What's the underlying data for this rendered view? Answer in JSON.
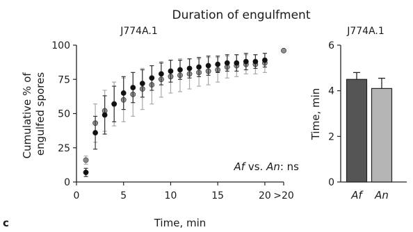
{
  "figure": {
    "title": "Duration of engulfment",
    "panel_letter": "c"
  },
  "chart_data": [
    {
      "type": "scatter",
      "subtitle": "J774A.1",
      "xlabel": "Time, min",
      "ylabel_lines": [
        "Cumulative % of",
        "engulfed spores"
      ],
      "xlim": [
        0,
        22
      ],
      "ylim": [
        0,
        100
      ],
      "xticks": [
        0,
        5,
        10,
        15,
        20,
        22
      ],
      "xtick_labels": [
        "0",
        "5",
        "10",
        "15",
        "20",
        ">20"
      ],
      "yticks": [
        0,
        25,
        50,
        75,
        100
      ],
      "annotation": {
        "s1": "Af",
        "mid": " vs. ",
        "s2": "An",
        "tail": ": ns"
      },
      "error_bars": "mean ± SD",
      "series": [
        {
          "name": "Af",
          "color": "#111111",
          "x": [
            1,
            2,
            3,
            4,
            5,
            6,
            7,
            8,
            9,
            10,
            11,
            12,
            13,
            14,
            15,
            16,
            17,
            18,
            19,
            20
          ],
          "y": [
            7,
            36,
            49,
            57,
            65,
            69,
            72,
            76,
            79,
            81,
            82,
            83,
            84,
            85,
            86,
            87,
            87,
            88,
            88,
            89
          ],
          "err": [
            3,
            12,
            14,
            13,
            12,
            11,
            10,
            9,
            8,
            8,
            7,
            7,
            7,
            7,
            6,
            6,
            6,
            6,
            5,
            5
          ]
        },
        {
          "name": "An",
          "color": "#7a7a7a",
          "x": [
            1,
            2,
            3,
            4,
            5,
            6,
            7,
            8,
            9,
            10,
            11,
            12,
            13,
            14,
            15,
            16,
            17,
            18,
            19,
            20,
            22
          ],
          "y": [
            16,
            43,
            52,
            57,
            60,
            64,
            68,
            71,
            75,
            77,
            78,
            79,
            80,
            81,
            82,
            84,
            85,
            86,
            86,
            87,
            96
          ],
          "err": [
            3,
            14,
            15,
            16,
            16,
            16,
            15,
            14,
            13,
            12,
            12,
            11,
            10,
            10,
            9,
            8,
            8,
            7,
            7,
            7,
            0
          ]
        }
      ]
    },
    {
      "type": "bar",
      "subtitle": "J774A.1",
      "ylabel": "Time, min",
      "categories": [
        "Af",
        "An"
      ],
      "values": [
        4.5,
        4.1
      ],
      "errors": [
        0.3,
        0.45
      ],
      "colors": [
        "#555555",
        "#b5b5b5"
      ],
      "ylim": [
        0,
        6
      ],
      "yticks": [
        0,
        2,
        4,
        6
      ]
    }
  ]
}
